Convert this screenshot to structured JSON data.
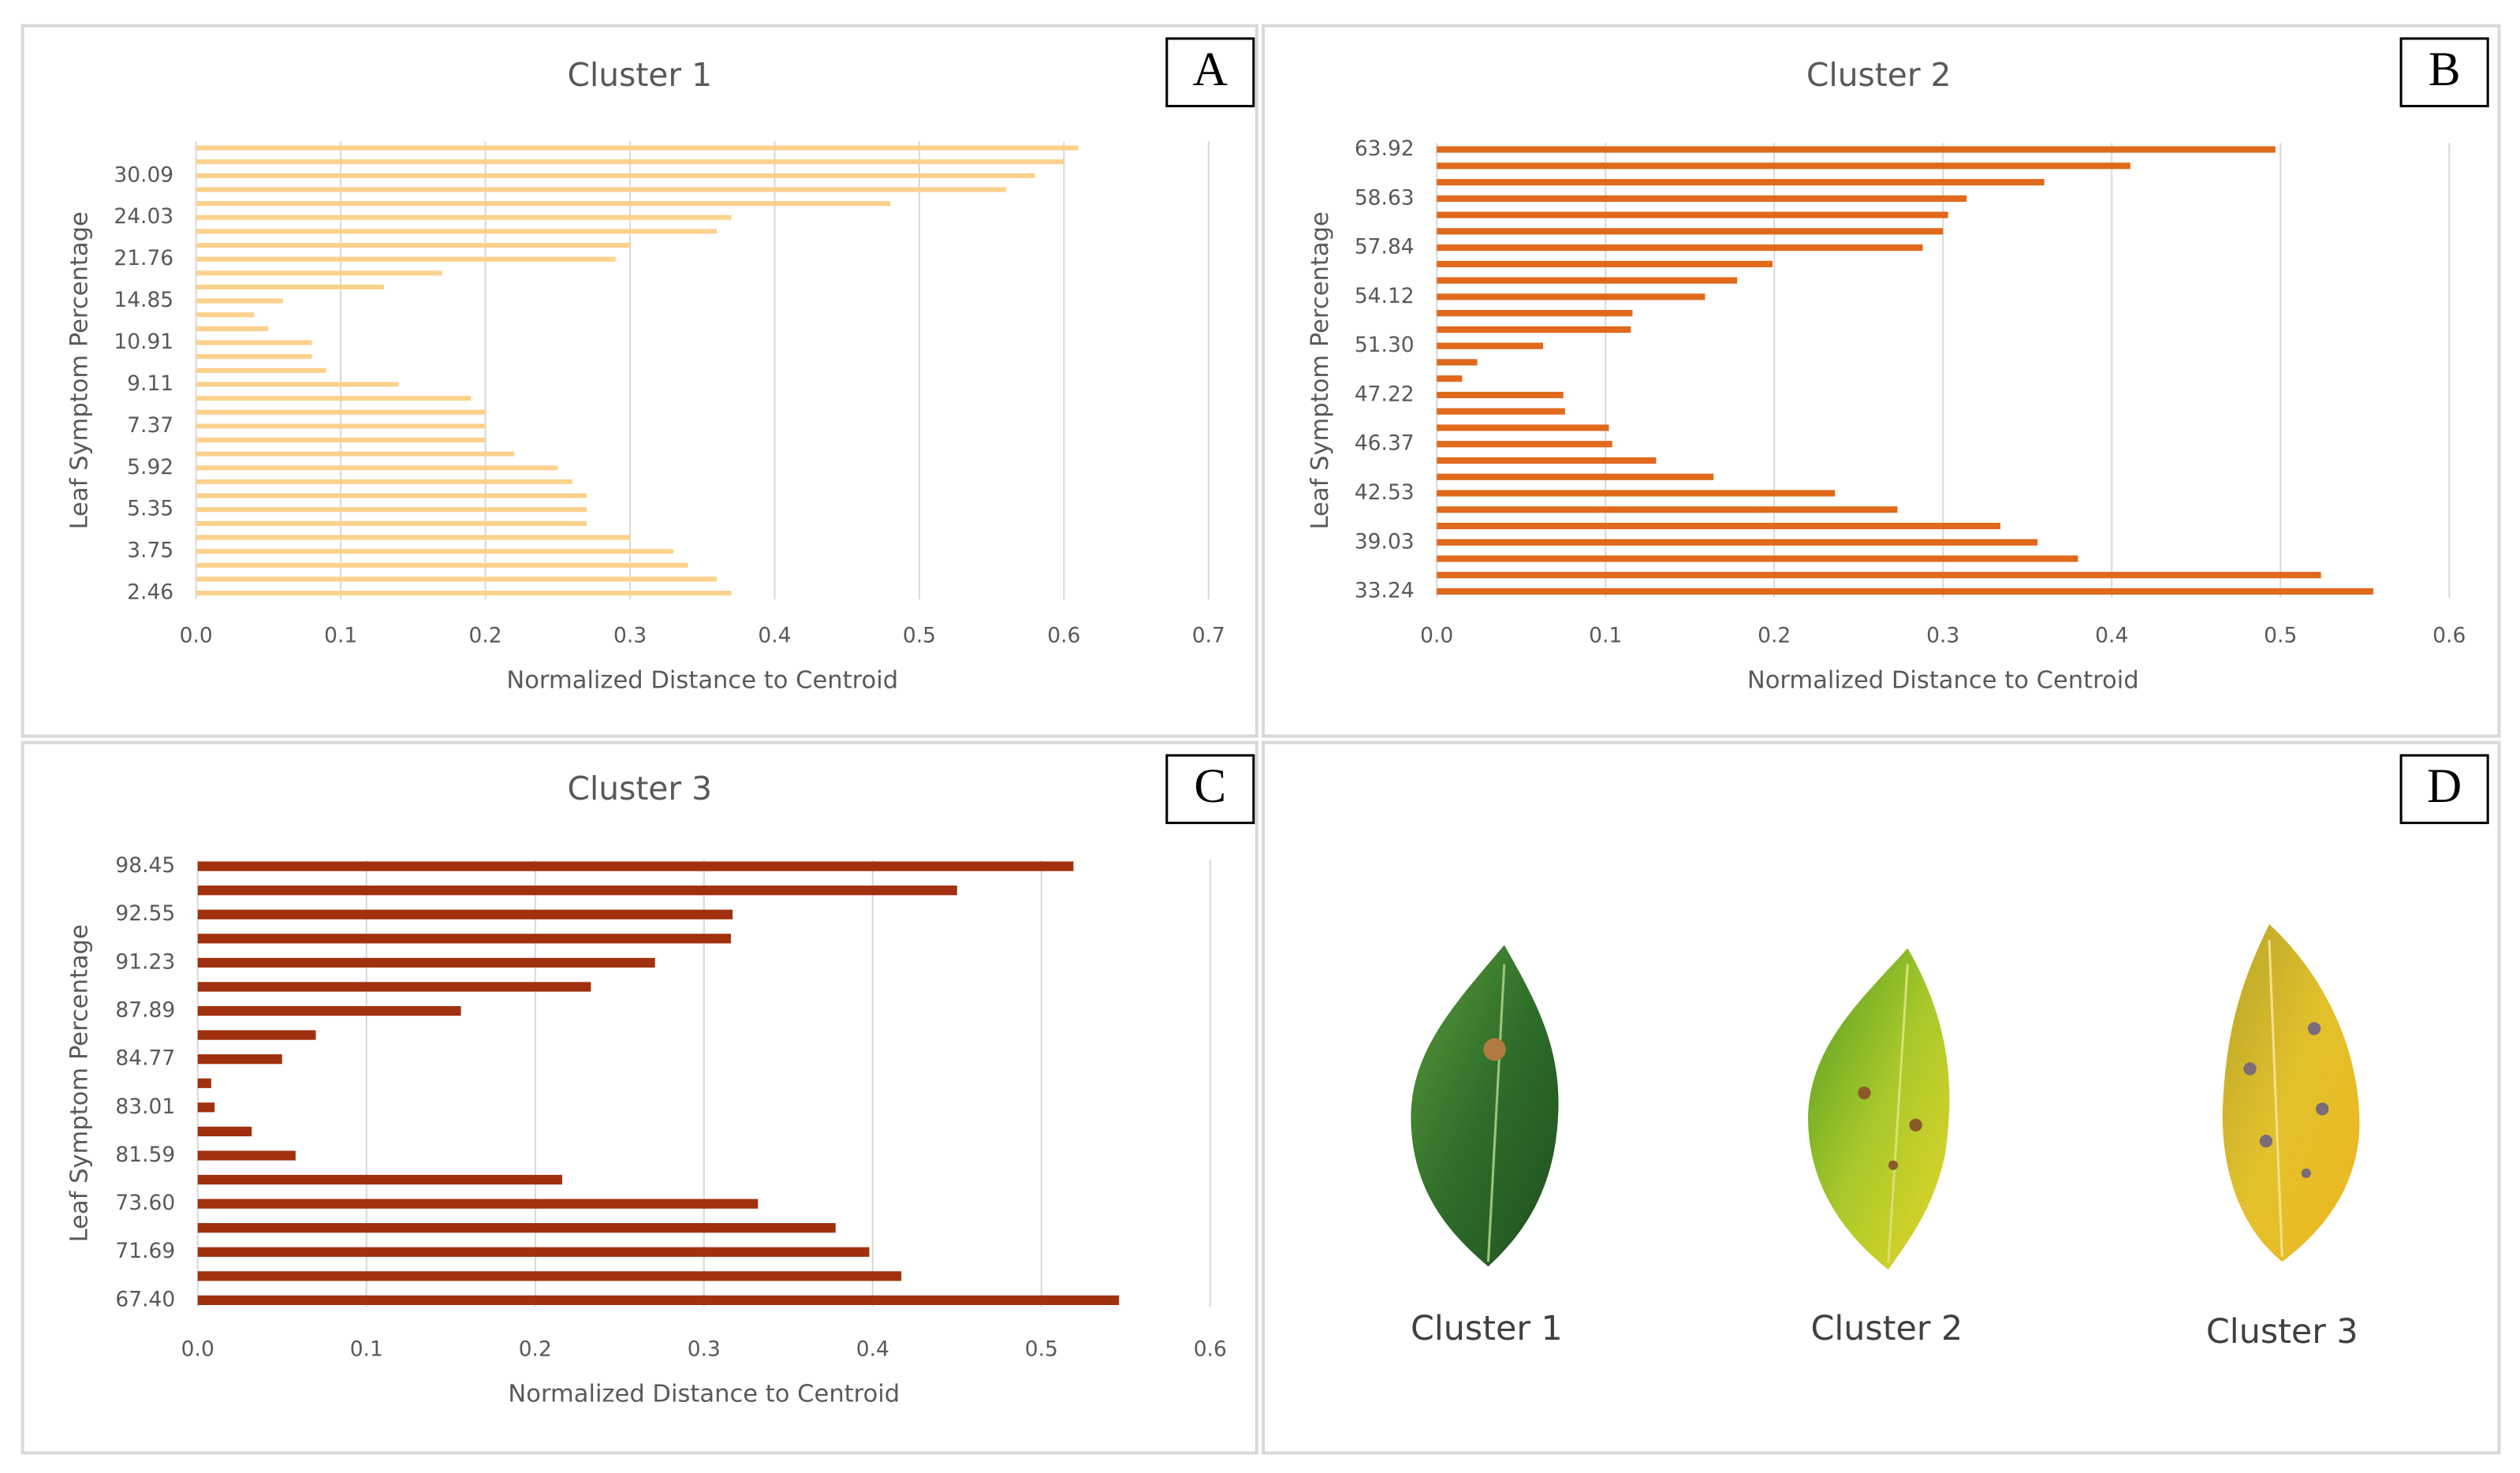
{
  "chart_data": [
    {
      "type": "barh",
      "panel": "A",
      "title": "Cluster 1",
      "xlabel": "Normalized Distance to Centroid",
      "ylabel": "Leaf Symptom Percentage",
      "color": "#fcd18c",
      "categories": [
        "2.46",
        null,
        null,
        "3.75",
        null,
        null,
        "5.35",
        null,
        null,
        "5.92",
        null,
        null,
        "7.37",
        null,
        null,
        "9.11",
        null,
        null,
        "10.91",
        null,
        null,
        "14.85",
        null,
        null,
        "21.76",
        null,
        null,
        "24.03",
        null,
        null,
        "30.09",
        null,
        null
      ],
      "values": [
        0.37,
        0.36,
        0.34,
        0.33,
        0.3,
        0.27,
        0.27,
        0.27,
        0.26,
        0.25,
        0.22,
        0.2,
        0.2,
        0.2,
        0.19,
        0.14,
        0.09,
        0.08,
        0.08,
        0.05,
        0.04,
        0.06,
        0.13,
        0.17,
        0.29,
        0.3,
        0.36,
        0.37,
        0.48,
        0.56,
        0.58,
        0.6,
        0.61
      ],
      "xlim": [
        0,
        0.7
      ],
      "xticks": [
        {
          "value": 0,
          "label": "0.0"
        },
        0.1,
        0.2,
        0.3,
        0.4,
        0.5,
        0.6,
        0.7
      ],
      "grid": true
    },
    {
      "type": "barh",
      "panel": "B",
      "title": "Cluster 2",
      "xlabel": "Normalized Distance to Centroid",
      "ylabel": "Leaf Symptom Percentage",
      "color": "#e0691c",
      "categories": [
        "33.24",
        null,
        null,
        "39.03",
        null,
        null,
        "42.53",
        null,
        null,
        "46.37",
        null,
        null,
        "47.22",
        null,
        null,
        "51.30",
        null,
        null,
        "54.12",
        null,
        null,
        "57.84",
        null,
        null,
        "58.63",
        null,
        null,
        "63.92"
      ],
      "values": [
        0.555,
        0.524,
        0.38,
        0.356,
        0.334,
        0.273,
        0.236,
        0.164,
        0.13,
        0.104,
        0.102,
        0.076,
        0.075,
        0.015,
        0.024,
        0.063,
        0.115,
        0.116,
        0.159,
        0.178,
        0.199,
        0.288,
        0.3,
        0.303,
        0.314,
        0.36,
        0.411,
        0.497
      ],
      "xlim": [
        0,
        0.6
      ],
      "xticks": [
        {
          "value": 0,
          "label": "0.0"
        },
        0.1,
        0.2,
        0.3,
        0.4,
        0.5,
        0.6
      ],
      "grid": true
    },
    {
      "type": "barh",
      "panel": "C",
      "title": "Cluster 3",
      "xlabel": "Normalized Distance to Centroid",
      "ylabel": "Leaf Symptom Percentage",
      "color": "#a1300f",
      "categories": [
        "67.40",
        null,
        "71.69",
        null,
        "73.60",
        null,
        "81.59",
        null,
        "83.01",
        null,
        "84.77",
        null,
        "87.89",
        null,
        "91.23",
        null,
        "92.55",
        null,
        "98.45"
      ],
      "values": [
        0.546,
        0.417,
        0.398,
        0.378,
        0.332,
        0.216,
        0.058,
        0.032,
        0.01,
        0.008,
        0.05,
        0.07,
        0.156,
        0.233,
        0.271,
        0.316,
        0.317,
        0.45,
        0.519
      ],
      "xlim": [
        0,
        0.6
      ],
      "xticks": [
        {
          "value": 0,
          "label": "0.0"
        },
        0.1,
        0.2,
        0.3,
        0.4,
        0.5,
        0.6
      ],
      "grid": true
    }
  ],
  "leaf_panel": {
    "panel": "D",
    "labels": [
      "Cluster 1",
      "Cluster 2",
      "Cluster 3"
    ]
  }
}
